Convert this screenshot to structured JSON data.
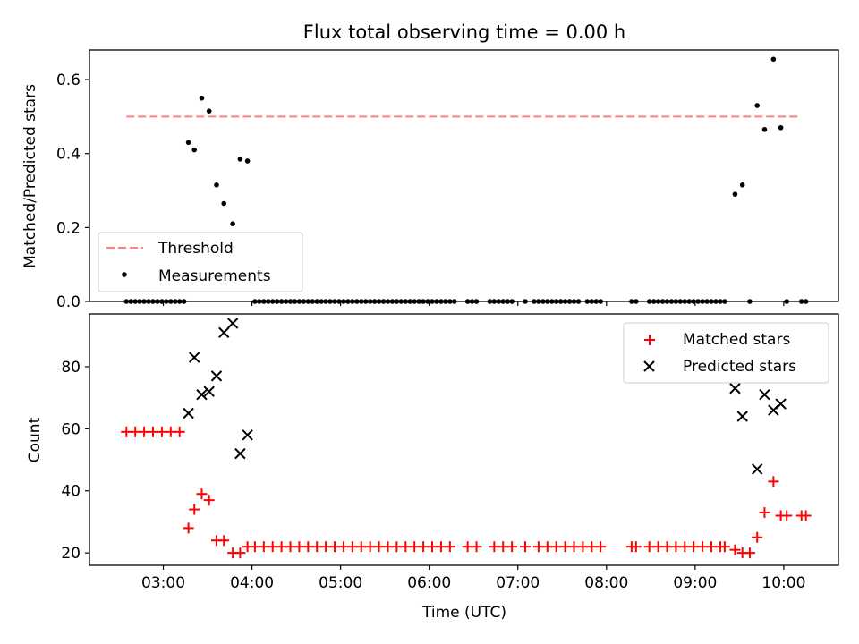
{
  "chart_data": [
    {
      "type": "scatter",
      "title": "Flux total observing time = 0.00 h",
      "xlabel": "",
      "ylabel": "Matched/Predicted stars",
      "xlim": [
        "02:10",
        "10:37"
      ],
      "ylim": [
        0,
        0.68
      ],
      "yticks": [
        0.0,
        0.2,
        0.4,
        0.6
      ],
      "ytick_labels": [
        "0.0",
        "0.2",
        "0.4",
        "0.6"
      ],
      "grid": false,
      "legend_position": "lower-left",
      "legend": [
        "Threshold",
        "Measurements"
      ],
      "threshold": {
        "name": "Threshold",
        "value": 0.5,
        "x_start": "02:35",
        "x_end": "10:10",
        "color": "#ff7f7f",
        "style": "dashed"
      },
      "series": [
        {
          "name": "Measurements",
          "color": "#000000",
          "marker": "dot",
          "points": [
            [
              "02:35",
              0.0
            ],
            [
              "02:38",
              0.0
            ],
            [
              "02:41",
              0.0
            ],
            [
              "02:44",
              0.0
            ],
            [
              "02:47",
              0.0
            ],
            [
              "02:50",
              0.0
            ],
            [
              "02:53",
              0.0
            ],
            [
              "02:56",
              0.0
            ],
            [
              "02:59",
              0.0
            ],
            [
              "03:02",
              0.0
            ],
            [
              "03:05",
              0.0
            ],
            [
              "03:08",
              0.0
            ],
            [
              "03:11",
              0.0
            ],
            [
              "03:14",
              0.0
            ],
            [
              "03:17",
              0.43
            ],
            [
              "03:21",
              0.41
            ],
            [
              "03:26",
              0.55
            ],
            [
              "03:31",
              0.515
            ],
            [
              "03:36",
              0.315
            ],
            [
              "03:41",
              0.265
            ],
            [
              "03:47",
              0.21
            ],
            [
              "03:52",
              0.385
            ],
            [
              "03:57",
              0.38
            ],
            [
              "04:02",
              0.0
            ],
            [
              "04:05",
              0.0
            ],
            [
              "04:08",
              0.0
            ],
            [
              "04:11",
              0.0
            ],
            [
              "04:14",
              0.0
            ],
            [
              "04:17",
              0.0
            ],
            [
              "04:20",
              0.0
            ],
            [
              "04:23",
              0.0
            ],
            [
              "04:26",
              0.0
            ],
            [
              "04:29",
              0.0
            ],
            [
              "04:32",
              0.0
            ],
            [
              "04:35",
              0.0
            ],
            [
              "04:38",
              0.0
            ],
            [
              "04:41",
              0.0
            ],
            [
              "04:44",
              0.0
            ],
            [
              "04:47",
              0.0
            ],
            [
              "04:50",
              0.0
            ],
            [
              "04:53",
              0.0
            ],
            [
              "04:56",
              0.0
            ],
            [
              "04:59",
              0.0
            ],
            [
              "05:02",
              0.0
            ],
            [
              "05:05",
              0.0
            ],
            [
              "05:08",
              0.0
            ],
            [
              "05:11",
              0.0
            ],
            [
              "05:14",
              0.0
            ],
            [
              "05:17",
              0.0
            ],
            [
              "05:20",
              0.0
            ],
            [
              "05:23",
              0.0
            ],
            [
              "05:26",
              0.0
            ],
            [
              "05:29",
              0.0
            ],
            [
              "05:32",
              0.0
            ],
            [
              "05:35",
              0.0
            ],
            [
              "05:38",
              0.0
            ],
            [
              "05:41",
              0.0
            ],
            [
              "05:44",
              0.0
            ],
            [
              "05:47",
              0.0
            ],
            [
              "05:50",
              0.0
            ],
            [
              "05:53",
              0.0
            ],
            [
              "05:56",
              0.0
            ],
            [
              "05:59",
              0.0
            ],
            [
              "06:02",
              0.0
            ],
            [
              "06:05",
              0.0
            ],
            [
              "06:08",
              0.0
            ],
            [
              "06:11",
              0.0
            ],
            [
              "06:14",
              0.0
            ],
            [
              "06:17",
              0.0
            ],
            [
              "06:26",
              0.0
            ],
            [
              "06:29",
              0.0
            ],
            [
              "06:32",
              0.0
            ],
            [
              "06:41",
              0.0
            ],
            [
              "06:44",
              0.0
            ],
            [
              "06:47",
              0.0
            ],
            [
              "06:50",
              0.0
            ],
            [
              "06:53",
              0.0
            ],
            [
              "06:56",
              0.0
            ],
            [
              "07:05",
              0.0
            ],
            [
              "07:11",
              0.0
            ],
            [
              "07:14",
              0.0
            ],
            [
              "07:17",
              0.0
            ],
            [
              "07:20",
              0.0
            ],
            [
              "07:23",
              0.0
            ],
            [
              "07:26",
              0.0
            ],
            [
              "07:29",
              0.0
            ],
            [
              "07:32",
              0.0
            ],
            [
              "07:35",
              0.0
            ],
            [
              "07:38",
              0.0
            ],
            [
              "07:41",
              0.0
            ],
            [
              "07:47",
              0.0
            ],
            [
              "07:50",
              0.0
            ],
            [
              "07:53",
              0.0
            ],
            [
              "07:56",
              0.0
            ],
            [
              "08:17",
              0.0
            ],
            [
              "08:20",
              0.0
            ],
            [
              "08:29",
              0.0
            ],
            [
              "08:32",
              0.0
            ],
            [
              "08:35",
              0.0
            ],
            [
              "08:38",
              0.0
            ],
            [
              "08:41",
              0.0
            ],
            [
              "08:44",
              0.0
            ],
            [
              "08:47",
              0.0
            ],
            [
              "08:50",
              0.0
            ],
            [
              "08:53",
              0.0
            ],
            [
              "08:56",
              0.0
            ],
            [
              "08:59",
              0.0
            ],
            [
              "09:02",
              0.0
            ],
            [
              "09:05",
              0.0
            ],
            [
              "09:08",
              0.0
            ],
            [
              "09:11",
              0.0
            ],
            [
              "09:14",
              0.0
            ],
            [
              "09:17",
              0.0
            ],
            [
              "09:20",
              0.0
            ],
            [
              "09:27",
              0.29
            ],
            [
              "09:32",
              0.315
            ],
            [
              "09:37",
              0.0
            ],
            [
              "09:42",
              0.53
            ],
            [
              "09:47",
              0.465
            ],
            [
              "09:53",
              0.655
            ],
            [
              "09:58",
              0.47
            ],
            [
              "10:02",
              0.0
            ],
            [
              "10:12",
              0.0
            ],
            [
              "10:15",
              0.0
            ]
          ]
        }
      ]
    },
    {
      "type": "scatter",
      "title": "",
      "xlabel": "Time (UTC)",
      "ylabel": "Count",
      "xlim": [
        "02:10",
        "10:37"
      ],
      "ylim": [
        16,
        97
      ],
      "yticks": [
        20,
        40,
        60,
        80
      ],
      "ytick_labels": [
        "20",
        "40",
        "60",
        "80"
      ],
      "xticks": [
        "03:00",
        "04:00",
        "05:00",
        "06:00",
        "07:00",
        "08:00",
        "09:00",
        "10:00"
      ],
      "xtick_labels": [
        "03:00",
        "04:00",
        "05:00",
        "06:00",
        "07:00",
        "08:00",
        "09:00",
        "10:00"
      ],
      "grid": false,
      "legend_position": "top-right",
      "legend": [
        "Matched stars",
        "Predicted stars"
      ],
      "series": [
        {
          "name": "Matched stars",
          "color": "#ff0000",
          "marker": "plus",
          "points": [
            [
              "02:35",
              59
            ],
            [
              "02:41",
              59
            ],
            [
              "02:47",
              59
            ],
            [
              "02:53",
              59
            ],
            [
              "02:59",
              59
            ],
            [
              "03:05",
              59
            ],
            [
              "03:11",
              59
            ],
            [
              "03:17",
              28
            ],
            [
              "03:21",
              34
            ],
            [
              "03:26",
              39
            ],
            [
              "03:31",
              37
            ],
            [
              "03:36",
              24
            ],
            [
              "03:41",
              24
            ],
            [
              "03:47",
              20
            ],
            [
              "03:52",
              20
            ],
            [
              "03:57",
              22
            ],
            [
              "04:02",
              22
            ],
            [
              "04:08",
              22
            ],
            [
              "04:14",
              22
            ],
            [
              "04:20",
              22
            ],
            [
              "04:26",
              22
            ],
            [
              "04:32",
              22
            ],
            [
              "04:38",
              22
            ],
            [
              "04:44",
              22
            ],
            [
              "04:50",
              22
            ],
            [
              "04:56",
              22
            ],
            [
              "05:02",
              22
            ],
            [
              "05:08",
              22
            ],
            [
              "05:14",
              22
            ],
            [
              "05:20",
              22
            ],
            [
              "05:26",
              22
            ],
            [
              "05:32",
              22
            ],
            [
              "05:38",
              22
            ],
            [
              "05:44",
              22
            ],
            [
              "05:50",
              22
            ],
            [
              "05:56",
              22
            ],
            [
              "06:02",
              22
            ],
            [
              "06:08",
              22
            ],
            [
              "06:14",
              22
            ],
            [
              "06:26",
              22
            ],
            [
              "06:32",
              22
            ],
            [
              "06:44",
              22
            ],
            [
              "06:50",
              22
            ],
            [
              "06:56",
              22
            ],
            [
              "07:05",
              22
            ],
            [
              "07:14",
              22
            ],
            [
              "07:20",
              22
            ],
            [
              "07:26",
              22
            ],
            [
              "07:32",
              22
            ],
            [
              "07:38",
              22
            ],
            [
              "07:44",
              22
            ],
            [
              "07:50",
              22
            ],
            [
              "07:56",
              22
            ],
            [
              "08:17",
              22
            ],
            [
              "08:20",
              22
            ],
            [
              "08:29",
              22
            ],
            [
              "08:35",
              22
            ],
            [
              "08:41",
              22
            ],
            [
              "08:47",
              22
            ],
            [
              "08:53",
              22
            ],
            [
              "08:59",
              22
            ],
            [
              "09:05",
              22
            ],
            [
              "09:11",
              22
            ],
            [
              "09:17",
              22
            ],
            [
              "09:20",
              22
            ],
            [
              "09:27",
              21
            ],
            [
              "09:32",
              20
            ],
            [
              "09:37",
              20
            ],
            [
              "09:42",
              25
            ],
            [
              "09:47",
              33
            ],
            [
              "09:53",
              43
            ],
            [
              "09:58",
              32
            ],
            [
              "10:02",
              32
            ],
            [
              "10:12",
              32
            ],
            [
              "10:15",
              32
            ]
          ]
        },
        {
          "name": "Predicted stars",
          "color": "#000000",
          "marker": "x",
          "points": [
            [
              "03:17",
              65
            ],
            [
              "03:21",
              83
            ],
            [
              "03:26",
              71
            ],
            [
              "03:31",
              72
            ],
            [
              "03:36",
              77
            ],
            [
              "03:41",
              91
            ],
            [
              "03:47",
              94
            ],
            [
              "03:52",
              52
            ],
            [
              "03:57",
              58
            ],
            [
              "09:27",
              73
            ],
            [
              "09:32",
              64
            ],
            [
              "09:42",
              47
            ],
            [
              "09:47",
              71
            ],
            [
              "09:53",
              66
            ],
            [
              "09:58",
              68
            ]
          ]
        }
      ]
    }
  ]
}
